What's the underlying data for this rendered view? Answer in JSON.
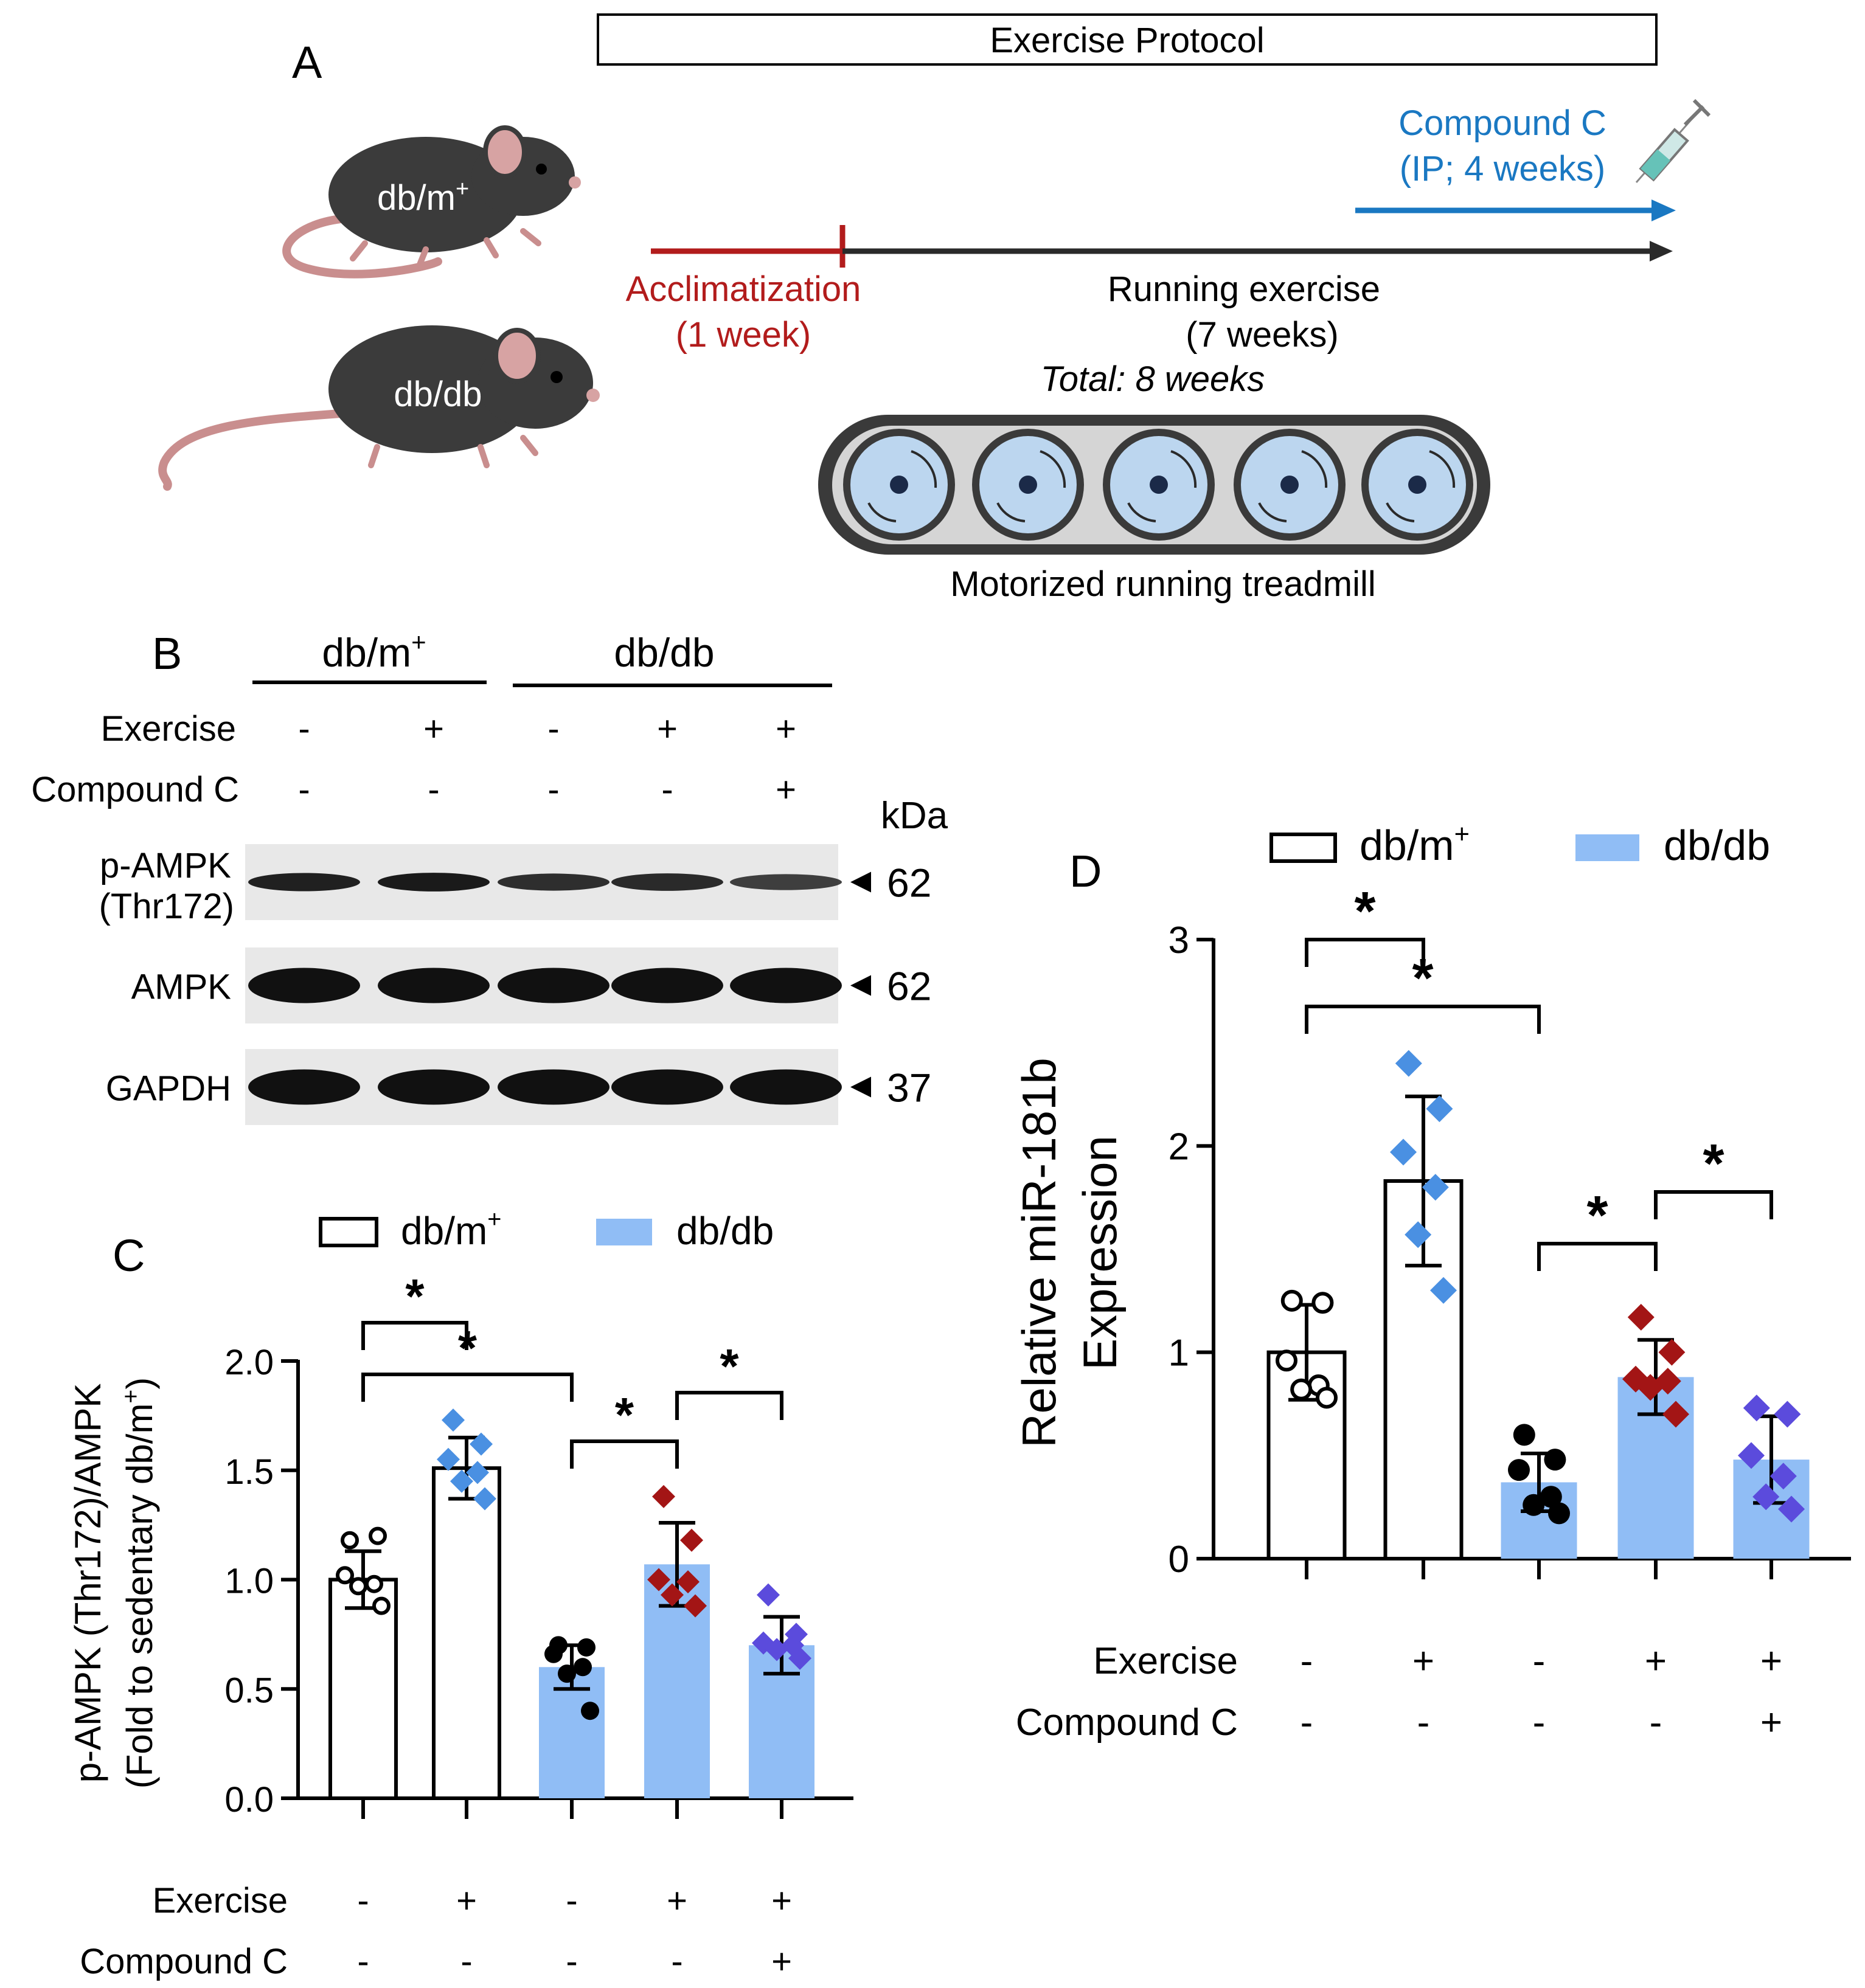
{
  "colors": {
    "dbm_fill": "#ffffff",
    "dbdb_fill": "#90bdf5",
    "marker_blue": "#4a90e2",
    "marker_black": "#000000",
    "marker_red": "#a31515",
    "marker_purple": "#5b4bdc",
    "accent_red": "#b21c1c",
    "accent_blue": "#1a78c2",
    "mouse": "#3b3b3b",
    "wheel": "#bcd6ef",
    "tread": "#d5d5d5"
  },
  "panelA": {
    "label": "A",
    "protocol_title": "Exercise Protocol",
    "mouse1_label": "db/m",
    "mouse1_sup": "+",
    "mouse2_label": "db/db",
    "compound_line1": "Compound C",
    "compound_line2": "(IP; 4 weeks)",
    "accl_line1": "Acclimatization",
    "accl_line2": "(1 week)",
    "run_line1": "Running exercise",
    "run_line2": "(7 weeks)",
    "total": "Total: 8 weeks",
    "treadmill_label": "Motorized running treadmill",
    "icons": [
      "mouse-icon",
      "syringe-icon",
      "treadmill-icon"
    ]
  },
  "panelB": {
    "label": "B",
    "group1": "db/m",
    "group1_sup": "+",
    "group2": "db/db",
    "row_exercise": "Exercise",
    "row_compound": "Compound C",
    "exercise": [
      "-",
      "+",
      "-",
      "+",
      "+"
    ],
    "compound": [
      "-",
      "-",
      "-",
      "-",
      "+"
    ],
    "kda_label": "kDa",
    "blots": [
      {
        "label_line1": "p-AMPK",
        "label_line2": "(Thr172)",
        "kda": "62",
        "intensity": [
          0.85,
          0.9,
          0.7,
          0.75,
          0.55
        ]
      },
      {
        "label_line1": "AMPK",
        "label_line2": "",
        "kda": "62",
        "intensity": [
          1,
          1,
          1,
          1,
          1
        ]
      },
      {
        "label_line1": "GAPDH",
        "label_line2": "",
        "kda": "37",
        "intensity": [
          1,
          1,
          1,
          1,
          1
        ]
      }
    ]
  },
  "chart_data": [
    {
      "panel": "C",
      "type": "bar",
      "ylabel_line1": "p-AMPK (Thr172)/AMPK",
      "ylabel_line2": "(Fold to sedentary db/m",
      "ylabel_sup": "+",
      "ylabel_close": ")",
      "ylim": [
        0,
        2.0
      ],
      "yticks": [
        "0.0",
        "0.5",
        "1.0",
        "1.5",
        "2.0"
      ],
      "legend": [
        {
          "name": "db/m",
          "sup": "+"
        },
        {
          "name": "db/db",
          "sup": ""
        }
      ],
      "row_exercise": "Exercise",
      "row_compound": "Compound C",
      "exercise": [
        "-",
        "+",
        "-",
        "+",
        "+"
      ],
      "compound": [
        "-",
        "-",
        "-",
        "-",
        "+"
      ],
      "bars": [
        {
          "group": "db/m+",
          "mean": 1.0,
          "sd": 0.13,
          "points": [
            1.18,
            1.2,
            1.02,
            0.98,
            0.97,
            0.88
          ],
          "marker": "circle-open",
          "marker_color": "#000000"
        },
        {
          "group": "db/m+",
          "mean": 1.51,
          "sd": 0.14,
          "points": [
            1.73,
            1.62,
            1.55,
            1.49,
            1.45,
            1.37
          ],
          "marker": "diamond",
          "marker_color": "#4a90e2"
        },
        {
          "group": "db/db",
          "mean": 0.6,
          "sd": 0.1,
          "points": [
            0.7,
            0.69,
            0.66,
            0.6,
            0.57,
            0.4
          ],
          "marker": "circle",
          "marker_color": "#000000"
        },
        {
          "group": "db/db",
          "mean": 1.07,
          "sd": 0.19,
          "points": [
            1.38,
            1.18,
            1.0,
            0.99,
            0.93,
            0.88
          ],
          "marker": "diamond",
          "marker_color": "#a31515"
        },
        {
          "group": "db/db",
          "mean": 0.7,
          "sd": 0.13,
          "points": [
            0.93,
            0.75,
            0.71,
            0.7,
            0.68,
            0.64
          ],
          "marker": "diamond",
          "marker_color": "#5b4bdc"
        }
      ],
      "significance": [
        {
          "from": 0,
          "to": 1,
          "label": "*"
        },
        {
          "from": 0,
          "to": 2,
          "label": "*"
        },
        {
          "from": 2,
          "to": 3,
          "label": "*"
        },
        {
          "from": 3,
          "to": 4,
          "label": "*"
        }
      ]
    },
    {
      "panel": "D",
      "type": "bar",
      "ylabel_line1": "Relative miR-181b",
      "ylabel_line2": "Expression",
      "ylim": [
        0,
        3
      ],
      "yticks": [
        "0",
        "1",
        "2",
        "3"
      ],
      "legend": [
        {
          "name": "db/m",
          "sup": "+"
        },
        {
          "name": "db/db",
          "sup": ""
        }
      ],
      "row_exercise": "Exercise",
      "row_compound": "Compound C",
      "exercise": [
        "-",
        "+",
        "-",
        "+",
        "+"
      ],
      "compound": [
        "-",
        "-",
        "-",
        "-",
        "+"
      ],
      "bars": [
        {
          "group": "db/m+",
          "mean": 1.0,
          "sd": 0.23,
          "points": [
            1.25,
            1.24,
            0.96,
            0.84,
            0.82,
            0.78
          ],
          "marker": "circle-open",
          "marker_color": "#000000"
        },
        {
          "group": "db/m+",
          "mean": 1.83,
          "sd": 0.41,
          "points": [
            2.4,
            2.18,
            1.97,
            1.8,
            1.57,
            1.3
          ],
          "marker": "diamond",
          "marker_color": "#4a90e2"
        },
        {
          "group": "db/db",
          "mean": 0.37,
          "sd": 0.14,
          "points": [
            0.6,
            0.48,
            0.43,
            0.3,
            0.26,
            0.22
          ],
          "marker": "circle",
          "marker_color": "#000000"
        },
        {
          "group": "db/db",
          "mean": 0.88,
          "sd": 0.18,
          "points": [
            1.17,
            1.0,
            0.87,
            0.86,
            0.83,
            0.7
          ],
          "marker": "diamond",
          "marker_color": "#a31515"
        },
        {
          "group": "db/db",
          "mean": 0.48,
          "sd": 0.21,
          "points": [
            0.73,
            0.7,
            0.5,
            0.4,
            0.3,
            0.24
          ],
          "marker": "diamond",
          "marker_color": "#5b4bdc"
        }
      ],
      "significance": [
        {
          "from": 0,
          "to": 1,
          "label": "*"
        },
        {
          "from": 0,
          "to": 2,
          "label": "*"
        },
        {
          "from": 2,
          "to": 3,
          "label": "*"
        },
        {
          "from": 3,
          "to": 4,
          "label": "*"
        }
      ]
    }
  ],
  "panelC": {
    "label": "C"
  },
  "panelD": {
    "label": "D"
  }
}
